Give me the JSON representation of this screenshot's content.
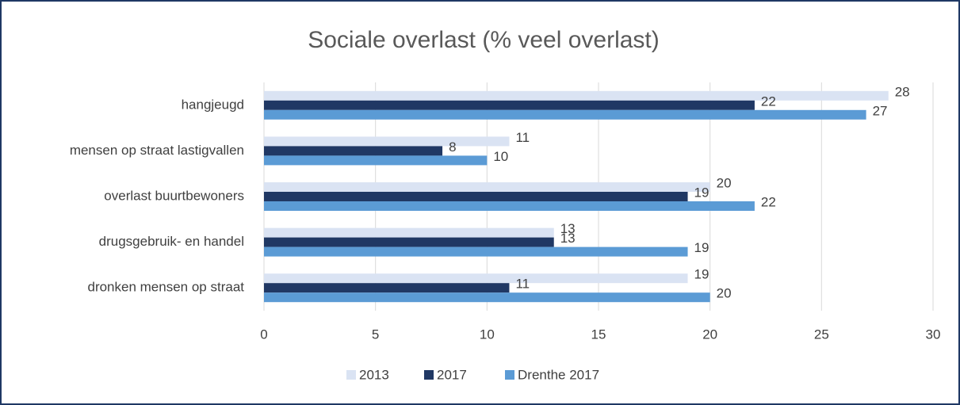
{
  "chart_data": {
    "type": "hbar",
    "title": "Sociale overlast (% veel overlast)",
    "categories": [
      "hangjeugd",
      "mensen op straat lastigvallen",
      "overlast buurtbewoners",
      "drugsgebruik- en handel",
      "dronken mensen op straat"
    ],
    "series": [
      {
        "name": "2013",
        "color": "#dae3f3",
        "values": [
          28,
          11,
          20,
          13,
          19
        ]
      },
      {
        "name": "2017",
        "color": "#203864",
        "values": [
          22,
          8,
          19,
          13,
          11
        ]
      },
      {
        "name": "Drenthe 2017",
        "color": "#5b9bd5",
        "values": [
          27,
          10,
          22,
          19,
          20
        ]
      }
    ],
    "xlim": [
      0,
      30
    ],
    "xticks": [
      0,
      5,
      10,
      15,
      20,
      25,
      30
    ],
    "grid": true,
    "legend": "bottom"
  }
}
